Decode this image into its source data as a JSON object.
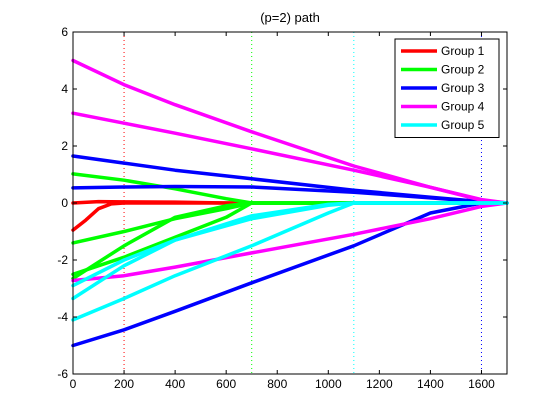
{
  "chart_data": {
    "type": "line",
    "title": "(p=2) path",
    "xlabel": "",
    "ylabel": "",
    "xlim": [
      0,
      1700
    ],
    "ylim": [
      -6,
      6
    ],
    "xticks": [
      0,
      200,
      400,
      600,
      800,
      1000,
      1200,
      1400,
      1600
    ],
    "yticks": [
      -6,
      -4,
      -2,
      0,
      2,
      4,
      6
    ],
    "grid": false,
    "legend_position": "top-right",
    "series": [
      {
        "name": "Group 1",
        "color": "#ff0000",
        "lines": [
          [
            [
              0,
              0.0
            ],
            [
              100,
              0.05
            ],
            [
              200,
              0.04
            ],
            [
              400,
              0.03
            ],
            [
              600,
              0.0
            ],
            [
              700,
              0.0
            ],
            [
              1100,
              0.0
            ],
            [
              1600,
              0.0
            ],
            [
              1700,
              0.0
            ]
          ],
          [
            [
              0,
              -0.95
            ],
            [
              50,
              -0.6
            ],
            [
              100,
              -0.2
            ],
            [
              150,
              -0.03
            ],
            [
              200,
              0.0
            ],
            [
              1700,
              0.0
            ]
          ]
        ]
      },
      {
        "name": "Group 2",
        "color": "#00ff00",
        "lines": [
          [
            [
              0,
              1.02
            ],
            [
              200,
              0.8
            ],
            [
              400,
              0.5
            ],
            [
              600,
              0.15
            ],
            [
              700,
              0.0
            ],
            [
              1700,
              0.0
            ]
          ],
          [
            [
              0,
              -1.4
            ],
            [
              200,
              -1.0
            ],
            [
              400,
              -0.55
            ],
            [
              600,
              -0.2
            ],
            [
              700,
              0.0
            ],
            [
              1700,
              0.0
            ]
          ],
          [
            [
              0,
              -2.5
            ],
            [
              200,
              -1.9
            ],
            [
              400,
              -1.2
            ],
            [
              600,
              -0.5
            ],
            [
              700,
              0.0
            ],
            [
              1700,
              0.0
            ]
          ],
          [
            [
              0,
              -2.65
            ],
            [
              200,
              -1.5
            ],
            [
              400,
              -0.5
            ],
            [
              600,
              -0.1
            ],
            [
              700,
              0.0
            ],
            [
              1700,
              0.0
            ]
          ]
        ]
      },
      {
        "name": "Group 3",
        "color": "#0000ff",
        "lines": [
          [
            [
              0,
              1.65
            ],
            [
              200,
              1.4
            ],
            [
              400,
              1.15
            ],
            [
              700,
              0.85
            ],
            [
              1100,
              0.45
            ],
            [
              1400,
              0.2
            ],
            [
              1600,
              0.05
            ],
            [
              1700,
              0.0
            ]
          ],
          [
            [
              0,
              0.53
            ],
            [
              200,
              0.56
            ],
            [
              400,
              0.58
            ],
            [
              700,
              0.56
            ],
            [
              1100,
              0.38
            ],
            [
              1400,
              0.18
            ],
            [
              1600,
              0.05
            ],
            [
              1700,
              0.0
            ]
          ],
          [
            [
              0,
              -5.0
            ],
            [
              200,
              -4.45
            ],
            [
              400,
              -3.8
            ],
            [
              700,
              -2.8
            ],
            [
              1100,
              -1.5
            ],
            [
              1400,
              -0.35
            ],
            [
              1600,
              0.0
            ],
            [
              1700,
              0.0
            ]
          ]
        ]
      },
      {
        "name": "Group 4",
        "color": "#ff00ff",
        "lines": [
          [
            [
              0,
              5.0
            ],
            [
              200,
              4.15
            ],
            [
              400,
              3.45
            ],
            [
              700,
              2.5
            ],
            [
              1100,
              1.3
            ],
            [
              1400,
              0.55
            ],
            [
              1600,
              0.1
            ],
            [
              1700,
              0.0
            ]
          ],
          [
            [
              0,
              3.15
            ],
            [
              200,
              2.8
            ],
            [
              400,
              2.45
            ],
            [
              700,
              1.9
            ],
            [
              1100,
              1.15
            ],
            [
              1400,
              0.55
            ],
            [
              1600,
              0.12
            ],
            [
              1700,
              0.0
            ]
          ],
          [
            [
              0,
              -2.72
            ],
            [
              200,
              -2.55
            ],
            [
              400,
              -2.25
            ],
            [
              700,
              -1.75
            ],
            [
              1100,
              -1.1
            ],
            [
              1400,
              -0.55
            ],
            [
              1600,
              -0.12
            ],
            [
              1700,
              0.0
            ]
          ]
        ]
      },
      {
        "name": "Group 5",
        "color": "#00ffff",
        "lines": [
          [
            [
              0,
              -2.9
            ],
            [
              200,
              -2.0
            ],
            [
              400,
              -1.3
            ],
            [
              700,
              -0.55
            ],
            [
              1000,
              -0.08
            ],
            [
              1100,
              0.0
            ],
            [
              1700,
              0.0
            ]
          ],
          [
            [
              0,
              -3.35
            ],
            [
              200,
              -2.2
            ],
            [
              400,
              -1.3
            ],
            [
              700,
              -0.45
            ],
            [
              1000,
              -0.05
            ],
            [
              1100,
              0.0
            ],
            [
              1700,
              0.0
            ]
          ],
          [
            [
              0,
              -4.1
            ],
            [
              200,
              -3.35
            ],
            [
              400,
              -2.55
            ],
            [
              700,
              -1.5
            ],
            [
              1000,
              -0.35
            ],
            [
              1100,
              0.0
            ],
            [
              1700,
              0.0
            ]
          ]
        ]
      }
    ],
    "vertical_markers": [
      {
        "x": 200,
        "color": "#ff0000"
      },
      {
        "x": 700,
        "color": "#00ff00"
      },
      {
        "x": 1100,
        "color": "#00ffff"
      },
      {
        "x": 1600,
        "color": "#0000ff"
      },
      {
        "x": 1700,
        "color": "#ff00ff"
      }
    ]
  }
}
